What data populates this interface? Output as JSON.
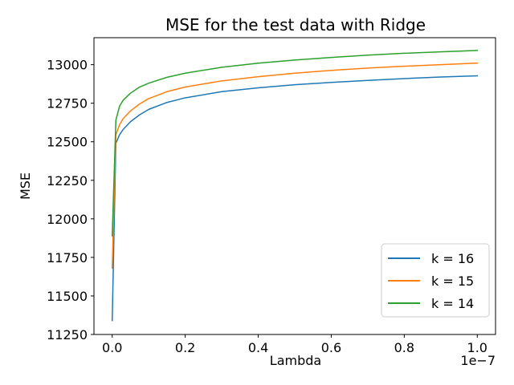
{
  "chart_data": {
    "type": "line",
    "title": "MSE for the test data with Ridge",
    "xlabel": "Lambda",
    "ylabel": "MSE",
    "x_offset_label": "1e−7",
    "xlim": [
      -0.05,
      1.05
    ],
    "ylim": [
      11250,
      13175
    ],
    "x_ticks": [
      0.0,
      0.2,
      0.4,
      0.6,
      0.8,
      1.0
    ],
    "x_tick_labels": [
      "0.0",
      "0.2",
      "0.4",
      "0.6",
      "0.8",
      "1.0"
    ],
    "y_ticks": [
      11250,
      11500,
      11750,
      12000,
      12250,
      12500,
      12750,
      13000
    ],
    "y_tick_labels": [
      "11250",
      "11500",
      "11750",
      "12000",
      "12250",
      "12500",
      "12750",
      "13000"
    ],
    "grid": false,
    "legend_position": "lower right",
    "x": [
      0.0,
      0.01,
      0.02,
      0.03,
      0.05,
      0.075,
      0.1,
      0.15,
      0.2,
      0.3,
      0.4,
      0.5,
      0.6,
      0.7,
      0.8,
      0.9,
      1.0
    ],
    "series": [
      {
        "name": "k = 16",
        "color": "#1f77b4",
        "values": [
          11340,
          12490,
          12545,
          12580,
          12630,
          12675,
          12710,
          12755,
          12785,
          12825,
          12850,
          12870,
          12885,
          12898,
          12910,
          12920,
          12928
        ]
      },
      {
        "name": "k = 15",
        "color": "#ff7f0e",
        "values": [
          11680,
          12545,
          12610,
          12650,
          12700,
          12745,
          12780,
          12825,
          12855,
          12895,
          12922,
          12945,
          12963,
          12978,
          12990,
          13000,
          13010
        ]
      },
      {
        "name": "k = 14",
        "color": "#2ca02c",
        "values": [
          11890,
          12640,
          12730,
          12770,
          12815,
          12855,
          12880,
          12918,
          12945,
          12983,
          13010,
          13030,
          13047,
          13062,
          13074,
          13083,
          13092
        ]
      }
    ]
  }
}
